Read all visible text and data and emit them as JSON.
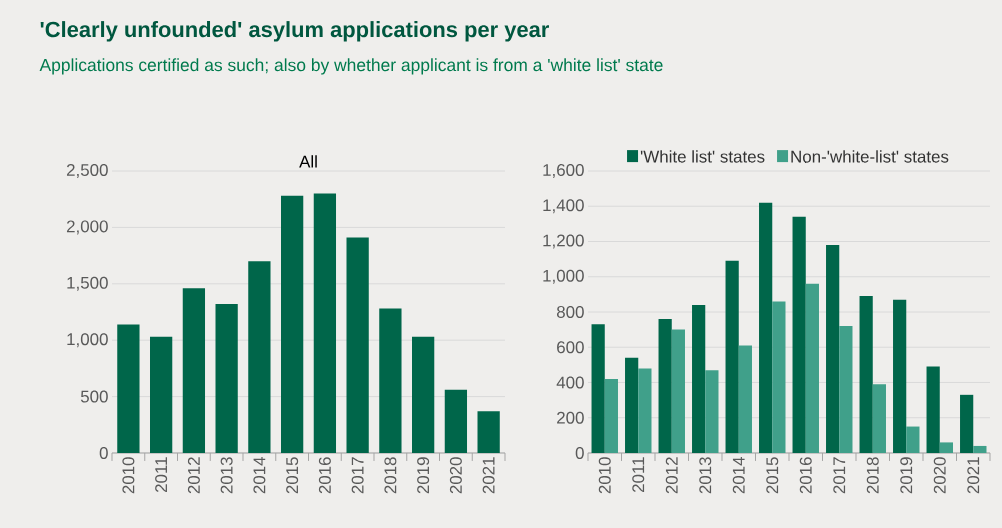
{
  "chart_data": [
    {
      "type": "bar",
      "title": "'Clearly unfounded' asylum applications per year",
      "subtitle": "Applications certified as such; also by whether applicant is from a 'white list' state",
      "categories": [
        "2010",
        "2011",
        "2012",
        "2013",
        "2014",
        "2015",
        "2016",
        "2017",
        "2018",
        "2019",
        "2020",
        "2021"
      ],
      "series": [
        {
          "name": "All",
          "color": "#00664a",
          "values": [
            1140,
            1030,
            1460,
            1320,
            1700,
            2280,
            2300,
            1910,
            1280,
            1030,
            560,
            370
          ]
        }
      ],
      "ylim": [
        0,
        2500
      ],
      "yticks": [
        0,
        500,
        {
          "value": 1000,
          "label": "1,000"
        },
        {
          "value": 1500,
          "label": "1,500"
        },
        {
          "value": 2000,
          "label": "2,000"
        },
        {
          "value": 2500,
          "label": "2,500"
        }
      ],
      "grid": "y",
      "legend": false
    },
    {
      "type": "bar",
      "categories": [
        "2010",
        "2011",
        "2012",
        "2013",
        "2014",
        "2015",
        "2016",
        "2017",
        "2018",
        "2019",
        "2020",
        "2021"
      ],
      "series": [
        {
          "name": "'White list' states",
          "color": "#00664a",
          "values": [
            730,
            540,
            760,
            840,
            1090,
            1420,
            1340,
            1180,
            890,
            870,
            490,
            330
          ]
        },
        {
          "name": "Non-'white-list' states",
          "color": "#40a08a",
          "values": [
            420,
            480,
            700,
            470,
            610,
            860,
            960,
            720,
            390,
            150,
            60,
            40
          ]
        }
      ],
      "ylim": [
        0,
        1600
      ],
      "yticks": [
        0,
        200,
        400,
        600,
        800,
        {
          "value": 1000,
          "label": "1,000"
        },
        {
          "value": 1200,
          "label": "1,200"
        },
        {
          "value": 1400,
          "label": "1,400"
        },
        {
          "value": 1600,
          "label": "1,600"
        }
      ],
      "grid": "y",
      "legend": "top"
    }
  ]
}
